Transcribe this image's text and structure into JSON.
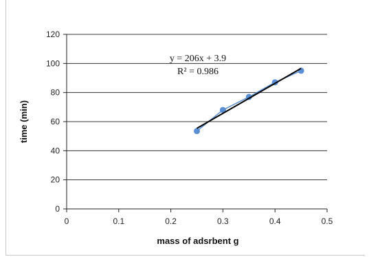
{
  "chart_data": {
    "type": "scatter",
    "xlabel": "mass of adsrbent g",
    "ylabel": "time (min)",
    "xlim": [
      0,
      0.5
    ],
    "ylim": [
      0,
      120
    ],
    "x_ticks": [
      "0",
      "0.1",
      "0.2",
      "0.3",
      "0.4",
      "0.5"
    ],
    "y_ticks": [
      "0",
      "20",
      "40",
      "60",
      "80",
      "100",
      "120"
    ],
    "grid": "horizontal",
    "series": [
      {
        "x": [
          0.25,
          0.3,
          0.35,
          0.4,
          0.45
        ],
        "y": [
          53.5,
          68,
          77,
          87,
          95
        ],
        "color": "#5b8fd4"
      }
    ],
    "trendline": {
      "slope": 206,
      "intercept": 3.9,
      "x_range": [
        0.25,
        0.45
      ],
      "color": "#000000"
    },
    "annotations": {
      "equation": "y = 206x + 3.9",
      "r_squared": "R² = 0.986"
    }
  }
}
